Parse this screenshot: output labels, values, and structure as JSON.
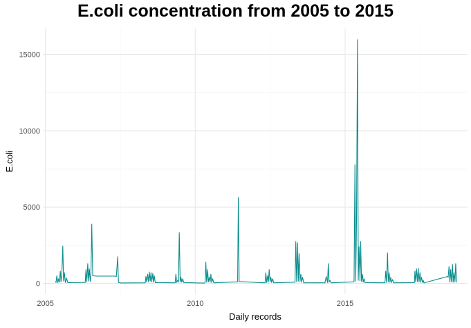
{
  "chart_data": {
    "type": "line",
    "title": "E.coli concentration from 2005 to 2015",
    "xlabel": "Daily records",
    "ylabel": "E.coli",
    "x_axis_type": "date",
    "xlim": [
      "2004-12-01",
      "2019-02-01"
    ],
    "ylim": [
      -700,
      16700
    ],
    "x_ticks": [
      "2005",
      "2010",
      "2015"
    ],
    "x_tick_dates": [
      "2005-01-01",
      "2010-01-01",
      "2015-01-01"
    ],
    "y_ticks": [
      0,
      5000,
      10000,
      15000
    ],
    "y_tick_labels": [
      "0",
      "5000",
      "10000",
      "15000"
    ],
    "grid": true,
    "legend": "none",
    "series": [
      {
        "color": "#0b8c8c",
        "points": [
          [
            "2005-05-01",
            120
          ],
          [
            "2005-05-10",
            60
          ],
          [
            "2005-05-20",
            500
          ],
          [
            "2005-06-01",
            40
          ],
          [
            "2005-06-10",
            300
          ],
          [
            "2005-06-20",
            80
          ],
          [
            "2005-07-01",
            800
          ],
          [
            "2005-07-10",
            100
          ],
          [
            "2005-07-20",
            600
          ],
          [
            "2005-08-01",
            2450
          ],
          [
            "2005-08-10",
            150
          ],
          [
            "2005-08-20",
            700
          ],
          [
            "2005-09-01",
            60
          ],
          [
            "2005-09-15",
            350
          ],
          [
            "2005-09-30",
            50
          ],
          [
            "2006-05-01",
            60
          ],
          [
            "2006-05-10",
            900
          ],
          [
            "2006-05-20",
            100
          ],
          [
            "2006-06-01",
            1300
          ],
          [
            "2006-06-10",
            150
          ],
          [
            "2006-06-20",
            950
          ],
          [
            "2006-07-01",
            120
          ],
          [
            "2006-07-10",
            600
          ],
          [
            "2006-07-20",
            3880
          ],
          [
            "2006-08-01",
            500
          ],
          [
            "2006-09-15",
            480
          ],
          [
            "2007-05-01",
            480
          ],
          [
            "2007-05-15",
            450
          ],
          [
            "2007-06-01",
            1750
          ],
          [
            "2007-06-10",
            60
          ],
          [
            "2007-07-10",
            30
          ],
          [
            "2008-05-01",
            40
          ],
          [
            "2008-05-10",
            450
          ],
          [
            "2008-05-20",
            80
          ],
          [
            "2008-06-01",
            600
          ],
          [
            "2008-06-10",
            100
          ],
          [
            "2008-06-20",
            750
          ],
          [
            "2008-07-01",
            150
          ],
          [
            "2008-07-10",
            700
          ],
          [
            "2008-07-20",
            100
          ],
          [
            "2008-08-01",
            650
          ],
          [
            "2008-08-10",
            80
          ],
          [
            "2008-08-20",
            500
          ],
          [
            "2008-09-01",
            50
          ],
          [
            "2009-05-01",
            40
          ],
          [
            "2009-05-10",
            600
          ],
          [
            "2009-05-20",
            60
          ],
          [
            "2009-06-01",
            200
          ],
          [
            "2009-06-10",
            80
          ],
          [
            "2009-06-20",
            3330
          ],
          [
            "2009-07-01",
            100
          ],
          [
            "2009-07-10",
            400
          ],
          [
            "2009-07-20",
            80
          ],
          [
            "2009-08-01",
            300
          ],
          [
            "2009-08-15",
            50
          ],
          [
            "2010-04-20",
            20
          ],
          [
            "2010-05-01",
            60
          ],
          [
            "2010-05-10",
            1400
          ],
          [
            "2010-05-20",
            80
          ],
          [
            "2010-06-01",
            900
          ],
          [
            "2010-06-10",
            100
          ],
          [
            "2010-06-20",
            400
          ],
          [
            "2010-07-01",
            80
          ],
          [
            "2010-07-10",
            600
          ],
          [
            "2010-07-20",
            60
          ],
          [
            "2010-08-01",
            300
          ],
          [
            "2010-08-15",
            40
          ],
          [
            "2011-06-01",
            100
          ],
          [
            "2011-06-10",
            5620
          ],
          [
            "2011-06-20",
            120
          ],
          [
            "2012-05-01",
            40
          ],
          [
            "2012-05-10",
            700
          ],
          [
            "2012-05-20",
            60
          ],
          [
            "2012-06-01",
            500
          ],
          [
            "2012-06-10",
            80
          ],
          [
            "2012-06-20",
            900
          ],
          [
            "2012-07-01",
            100
          ],
          [
            "2012-07-10",
            400
          ],
          [
            "2012-07-20",
            60
          ],
          [
            "2012-08-01",
            300
          ],
          [
            "2012-08-15",
            40
          ],
          [
            "2013-05-01",
            80
          ],
          [
            "2013-05-10",
            2750
          ],
          [
            "2013-05-20",
            100
          ],
          [
            "2013-06-01",
            2650
          ],
          [
            "2013-06-10",
            150
          ],
          [
            "2013-06-20",
            1950
          ],
          [
            "2013-07-01",
            120
          ],
          [
            "2013-07-10",
            600
          ],
          [
            "2013-07-20",
            80
          ],
          [
            "2013-08-01",
            400
          ],
          [
            "2013-08-15",
            40
          ],
          [
            "2014-05-01",
            40
          ],
          [
            "2014-05-15",
            450
          ],
          [
            "2014-06-01",
            60
          ],
          [
            "2014-06-10",
            1300
          ],
          [
            "2014-06-20",
            80
          ],
          [
            "2014-07-01",
            200
          ],
          [
            "2014-07-15",
            40
          ],
          [
            "2015-04-20",
            100
          ],
          [
            "2015-05-01",
            7780
          ],
          [
            "2015-05-10",
            150
          ],
          [
            "2015-05-20",
            4100
          ],
          [
            "2015-06-01",
            15960
          ],
          [
            "2015-06-10",
            200
          ],
          [
            "2015-06-20",
            2400
          ],
          [
            "2015-07-01",
            150
          ],
          [
            "2015-07-10",
            2750
          ],
          [
            "2015-07-20",
            120
          ],
          [
            "2015-08-01",
            600
          ],
          [
            "2015-08-10",
            80
          ],
          [
            "2015-08-20",
            300
          ],
          [
            "2015-09-01",
            50
          ],
          [
            "2016-05-01",
            40
          ],
          [
            "2016-05-10",
            800
          ],
          [
            "2016-05-20",
            60
          ],
          [
            "2016-06-01",
            2000
          ],
          [
            "2016-06-10",
            100
          ],
          [
            "2016-06-20",
            700
          ],
          [
            "2016-07-01",
            80
          ],
          [
            "2016-07-10",
            400
          ],
          [
            "2016-07-20",
            60
          ],
          [
            "2016-08-01",
            250
          ],
          [
            "2016-08-15",
            40
          ],
          [
            "2017-04-25",
            50
          ],
          [
            "2017-05-01",
            800
          ],
          [
            "2017-05-10",
            100
          ],
          [
            "2017-05-20",
            950
          ],
          [
            "2017-06-01",
            120
          ],
          [
            "2017-06-10",
            1000
          ],
          [
            "2017-06-20",
            100
          ],
          [
            "2017-07-01",
            700
          ],
          [
            "2017-07-10",
            80
          ],
          [
            "2017-07-20",
            400
          ],
          [
            "2017-08-01",
            60
          ],
          [
            "2017-08-10",
            200
          ],
          [
            "2017-08-20",
            30
          ],
          [
            "2018-06-01",
            450
          ],
          [
            "2018-06-10",
            400
          ],
          [
            "2018-06-20",
            1100
          ],
          [
            "2018-07-01",
            80
          ],
          [
            "2018-07-10",
            900
          ],
          [
            "2018-07-20",
            100
          ],
          [
            "2018-08-01",
            1250
          ],
          [
            "2018-08-10",
            80
          ],
          [
            "2018-08-20",
            700
          ],
          [
            "2018-09-01",
            100
          ],
          [
            "2018-09-10",
            1300
          ],
          [
            "2018-09-20",
            60
          ]
        ]
      }
    ]
  }
}
